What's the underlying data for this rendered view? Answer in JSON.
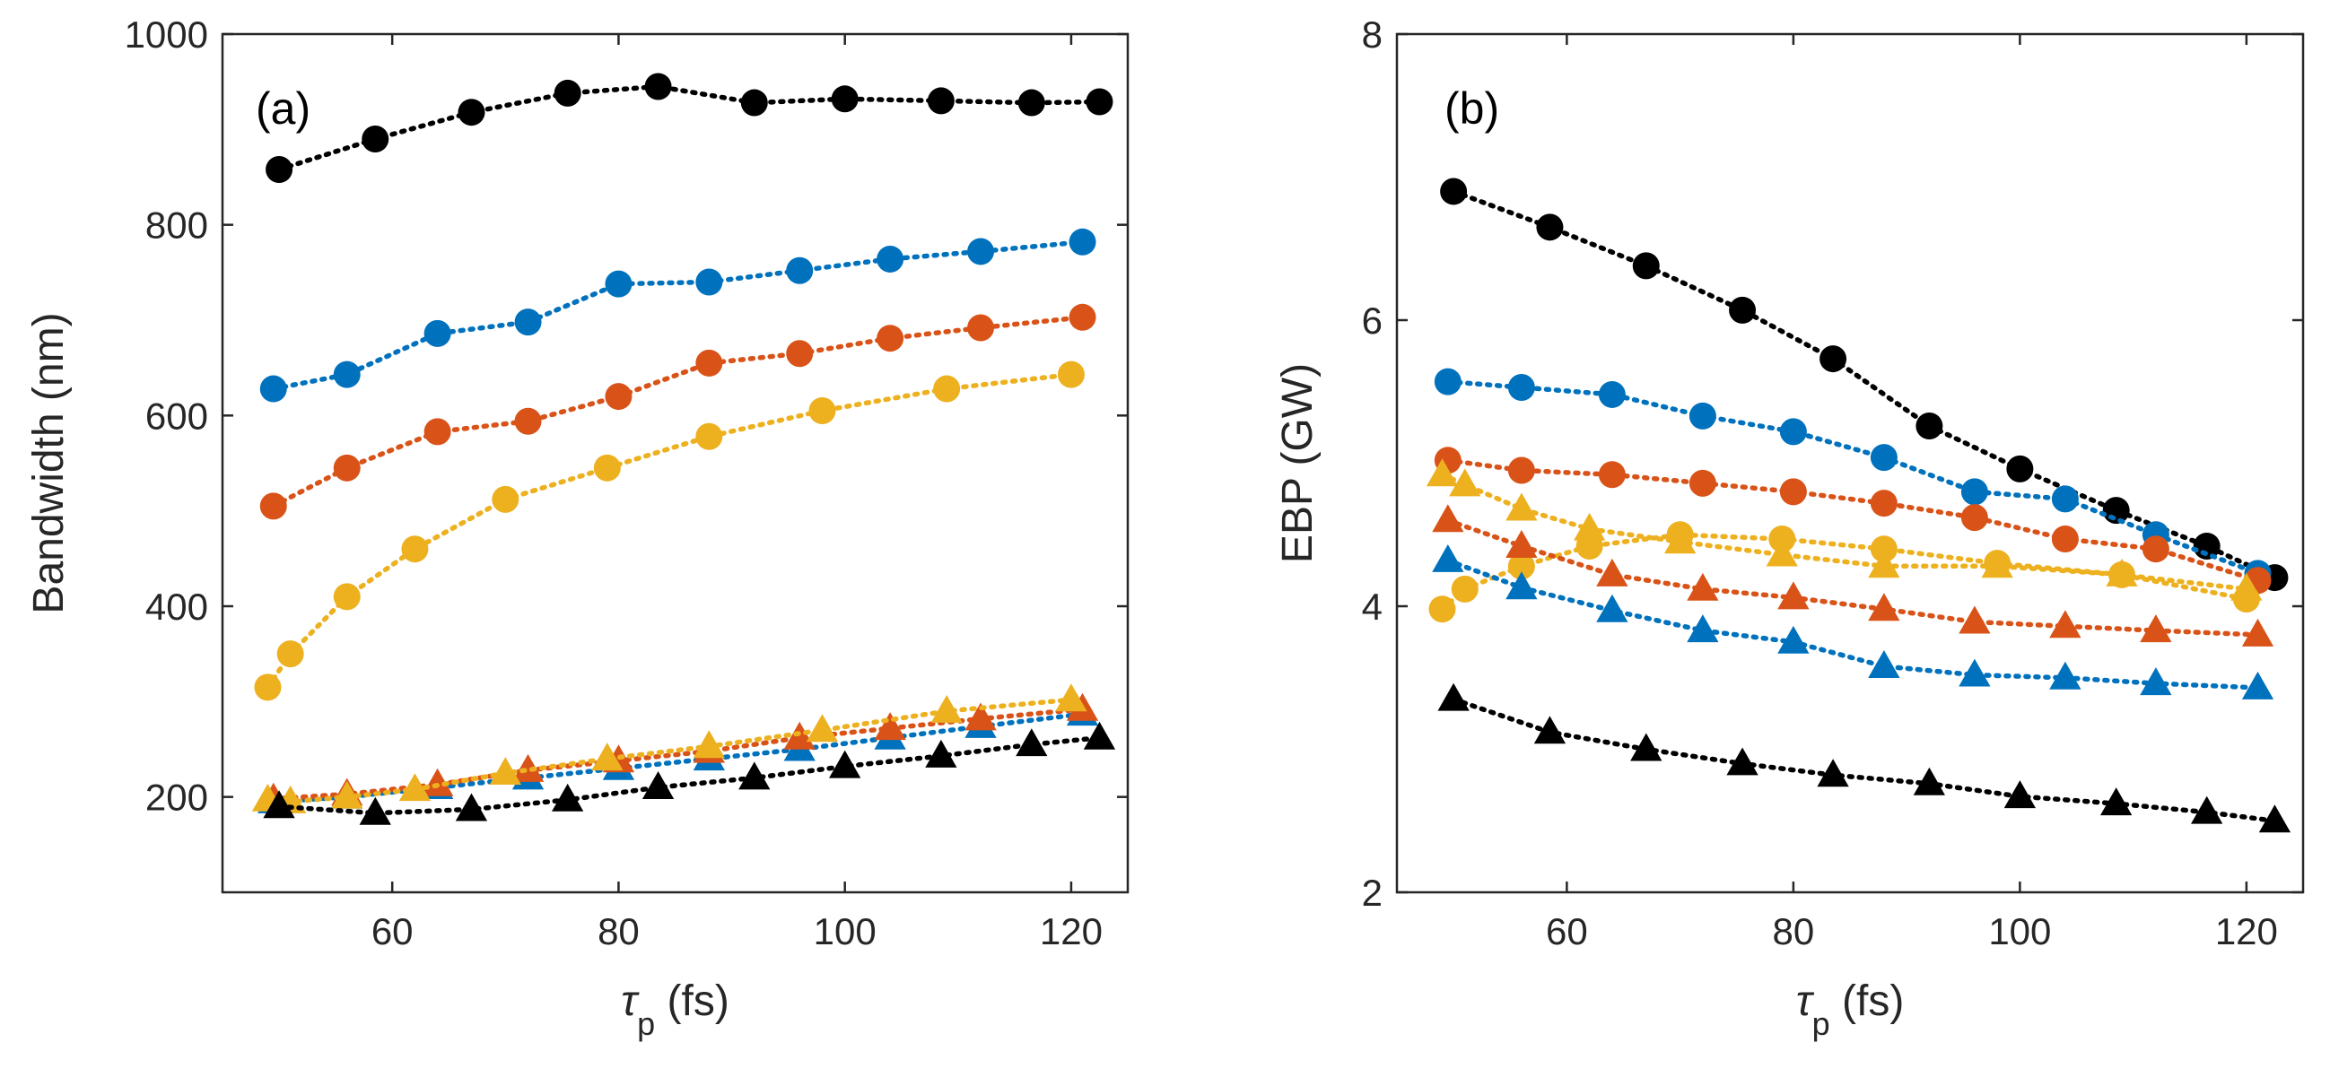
{
  "chart_data": [
    {
      "type": "line",
      "panel_label": "(a)",
      "xlabel_symbol": "τ",
      "xlabel_sub": "p",
      "xlabel_unit": " (fs)",
      "ylabel": "Bandwidth (nm)",
      "xlim": [
        45,
        125
      ],
      "ylim": [
        100,
        1000
      ],
      "xticks": [
        60,
        80,
        100,
        120
      ],
      "yticks": [
        200,
        400,
        600,
        800,
        1000
      ],
      "series": [
        {
          "name": "circle-black",
          "marker": "circle",
          "color": "#000000",
          "x": [
            50,
            58.5,
            67,
            75.5,
            83.5,
            92,
            100,
            108.5,
            116.5,
            122.5
          ],
          "y": [
            858,
            890,
            918,
            938,
            945,
            928,
            932,
            930,
            928,
            929
          ]
        },
        {
          "name": "circle-blue",
          "marker": "circle",
          "color": "#0072BD",
          "x": [
            49.5,
            56,
            64,
            72,
            80,
            88,
            96,
            104,
            112,
            121
          ],
          "y": [
            628,
            643,
            686,
            698,
            738,
            740,
            752,
            764,
            772,
            782
          ]
        },
        {
          "name": "circle-orange",
          "marker": "circle",
          "color": "#D95319",
          "x": [
            49.5,
            56,
            64,
            72,
            80,
            88,
            96,
            104,
            112,
            121
          ],
          "y": [
            505,
            545,
            583,
            594,
            620,
            655,
            665,
            681,
            692,
            703
          ]
        },
        {
          "name": "circle-yellow",
          "marker": "circle",
          "color": "#EDB120",
          "x": [
            49,
            51,
            56,
            62,
            70,
            79,
            88,
            98,
            109,
            120
          ],
          "y": [
            315,
            350,
            410,
            460,
            512,
            545,
            578,
            605,
            628,
            643
          ]
        },
        {
          "name": "triangle-blue",
          "marker": "triangle",
          "color": "#0072BD",
          "x": [
            49.5,
            56,
            64,
            72,
            80,
            88,
            96,
            104,
            112,
            121
          ],
          "y": [
            195,
            200,
            210,
            220,
            230,
            240,
            250,
            262,
            274,
            287
          ]
        },
        {
          "name": "triangle-orange",
          "marker": "triangle",
          "color": "#D95319",
          "x": [
            49.5,
            56,
            64,
            72,
            80,
            88,
            96,
            104,
            112,
            121
          ],
          "y": [
            198,
            203,
            213,
            228,
            238,
            248,
            262,
            272,
            282,
            292
          ]
        },
        {
          "name": "triangle-yellow",
          "marker": "triangle",
          "color": "#EDB120",
          "x": [
            49,
            51,
            56,
            62,
            70,
            79,
            88,
            98,
            109,
            120
          ],
          "y": [
            197,
            195,
            200,
            208,
            225,
            240,
            253,
            270,
            290,
            302
          ]
        },
        {
          "name": "triangle-black",
          "marker": "triangle",
          "color": "#000000",
          "x": [
            50,
            58.5,
            67,
            75.5,
            83.5,
            92,
            100,
            108.5,
            116.5,
            122.5
          ],
          "y": [
            190,
            183,
            187,
            197,
            210,
            220,
            232,
            243,
            255,
            262
          ]
        }
      ]
    },
    {
      "type": "line",
      "panel_label": "(b)",
      "xlabel_symbol": "τ",
      "xlabel_sub": "p",
      "xlabel_unit": " (fs)",
      "ylabel": "EBP (GW)",
      "xlim": [
        45,
        125
      ],
      "ylim": [
        2,
        8
      ],
      "xticks": [
        60,
        80,
        100,
        120
      ],
      "yticks": [
        2,
        4,
        6,
        8
      ],
      "series": [
        {
          "name": "circle-black",
          "marker": "circle",
          "color": "#000000",
          "x": [
            50,
            58.5,
            67,
            75.5,
            83.5,
            92,
            100,
            108.5,
            116.5,
            122.5
          ],
          "y": [
            6.9,
            6.65,
            6.38,
            6.07,
            5.73,
            5.26,
            4.96,
            4.67,
            4.42,
            4.2
          ]
        },
        {
          "name": "circle-blue",
          "marker": "circle",
          "color": "#0072BD",
          "x": [
            49.5,
            56,
            64,
            72,
            80,
            88,
            96,
            104,
            112,
            121
          ],
          "y": [
            5.57,
            5.53,
            5.48,
            5.33,
            5.22,
            5.04,
            4.8,
            4.75,
            4.5,
            4.23
          ]
        },
        {
          "name": "circle-orange",
          "marker": "circle",
          "color": "#D95319",
          "x": [
            49.5,
            56,
            64,
            72,
            80,
            88,
            96,
            104,
            112,
            121
          ],
          "y": [
            5.02,
            4.95,
            4.92,
            4.86,
            4.8,
            4.72,
            4.62,
            4.47,
            4.4,
            4.18
          ]
        },
        {
          "name": "circle-yellow",
          "marker": "circle",
          "color": "#EDB120",
          "x": [
            49,
            51,
            56,
            62,
            70,
            79,
            88,
            98,
            109,
            120
          ],
          "y": [
            3.98,
            4.12,
            4.28,
            4.42,
            4.5,
            4.47,
            4.4,
            4.3,
            4.22,
            4.05
          ]
        },
        {
          "name": "triangle-yellow",
          "marker": "triangle",
          "color": "#EDB120",
          "x": [
            49,
            51,
            56,
            62,
            70,
            79,
            88,
            98,
            109,
            120
          ],
          "y": [
            4.92,
            4.85,
            4.68,
            4.54,
            4.45,
            4.36,
            4.28,
            4.28,
            4.22,
            4.12
          ]
        },
        {
          "name": "triangle-orange",
          "marker": "triangle",
          "color": "#D95319",
          "x": [
            49.5,
            56,
            64,
            72,
            80,
            88,
            96,
            104,
            112,
            121
          ],
          "y": [
            4.6,
            4.42,
            4.22,
            4.12,
            4.06,
            3.98,
            3.89,
            3.86,
            3.83,
            3.8
          ]
        },
        {
          "name": "triangle-blue",
          "marker": "triangle",
          "color": "#0072BD",
          "x": [
            49.5,
            56,
            64,
            72,
            80,
            88,
            96,
            104,
            112,
            121
          ],
          "y": [
            4.32,
            4.13,
            3.97,
            3.83,
            3.75,
            3.58,
            3.52,
            3.5,
            3.46,
            3.43
          ]
        },
        {
          "name": "triangle-black",
          "marker": "triangle",
          "color": "#000000",
          "x": [
            50,
            58.5,
            67,
            75.5,
            83.5,
            92,
            100,
            108.5,
            116.5,
            122.5
          ],
          "y": [
            3.35,
            3.12,
            3.0,
            2.9,
            2.82,
            2.76,
            2.67,
            2.62,
            2.56,
            2.5
          ]
        }
      ]
    }
  ]
}
